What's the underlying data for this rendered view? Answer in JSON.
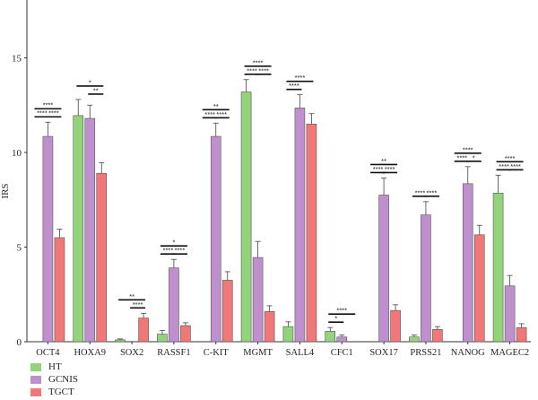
{
  "chart_data": {
    "type": "bar",
    "ylabel": "IRS",
    "xlabel": "",
    "ylim": [
      0,
      18
    ],
    "yticks": [
      0,
      5,
      10,
      15
    ],
    "grid": false,
    "legend_position": "bottom-left",
    "categories": [
      "OCT4",
      "HOXA9",
      "SOX2",
      "RASSF1",
      "C-KIT",
      "MGMT",
      "SALL4",
      "CFC1",
      "SOX17",
      "PRSS21",
      "NANOG",
      "MAGEC2"
    ],
    "series": [
      {
        "name": "HT",
        "color": "#93d37c",
        "values": [
          0,
          11.95,
          0.1,
          0.4,
          0,
          13.2,
          0.8,
          0.55,
          0,
          0.25,
          0,
          7.85
        ],
        "errors": [
          0,
          0.85,
          0.05,
          0.2,
          0,
          0.65,
          0.25,
          0.2,
          0,
          0.1,
          0,
          0.95
        ]
      },
      {
        "name": "GCNIS",
        "color": "#c090ce",
        "values": [
          10.85,
          11.8,
          0,
          3.9,
          10.85,
          4.45,
          12.35,
          0.25,
          7.75,
          6.7,
          8.35,
          2.95
        ],
        "errors": [
          0.75,
          0.7,
          0,
          0.45,
          0.7,
          0.85,
          0.7,
          0.1,
          0.9,
          0.7,
          0.9,
          0.55
        ]
      },
      {
        "name": "TGCT",
        "color": "#f07878",
        "values": [
          5.5,
          8.9,
          1.25,
          0.85,
          3.25,
          1.6,
          11.5,
          0,
          1.65,
          0.65,
          5.65,
          0.75
        ],
        "errors": [
          0.45,
          0.55,
          0.25,
          0.15,
          0.45,
          0.3,
          0.55,
          0,
          0.3,
          0.15,
          0.5,
          0.2
        ]
      }
    ],
    "significance": [
      {
        "category": "OCT4",
        "brackets": [
          {
            "from": 1,
            "to": 2,
            "label": "****",
            "level": 0
          },
          {
            "from": 0,
            "to": 1,
            "label": "****",
            "level": 0
          },
          {
            "from": 0,
            "to": 2,
            "label": "****",
            "level": 1
          }
        ]
      },
      {
        "category": "HOXA9",
        "brackets": [
          {
            "from": 1,
            "to": 2,
            "label": "**",
            "level": 0
          },
          {
            "from": 0,
            "to": 2,
            "label": "*",
            "level": 1
          }
        ]
      },
      {
        "category": "SOX2",
        "brackets": [
          {
            "from": 1,
            "to": 2,
            "label": "****",
            "level": 0
          },
          {
            "from": 0,
            "to": 2,
            "label": "**",
            "level": 1
          }
        ]
      },
      {
        "category": "RASSF1",
        "brackets": [
          {
            "from": 0,
            "to": 1,
            "label": "****",
            "level": 0
          },
          {
            "from": 1,
            "to": 2,
            "label": "****",
            "level": 0
          },
          {
            "from": 0,
            "to": 2,
            "label": "*",
            "level": 1
          }
        ]
      },
      {
        "category": "C-KIT",
        "brackets": [
          {
            "from": 0,
            "to": 1,
            "label": "****",
            "level": 0
          },
          {
            "from": 1,
            "to": 2,
            "label": "****",
            "level": 0
          },
          {
            "from": 0,
            "to": 2,
            "label": "**",
            "level": 1
          }
        ]
      },
      {
        "category": "MGMT",
        "brackets": [
          {
            "from": 0,
            "to": 1,
            "label": "****",
            "level": 0
          },
          {
            "from": 1,
            "to": 2,
            "label": "****",
            "level": 0
          },
          {
            "from": 0,
            "to": 2,
            "label": "****",
            "level": 1
          }
        ]
      },
      {
        "category": "SALL4",
        "brackets": [
          {
            "from": 0,
            "to": 1,
            "label": "****",
            "level": 0
          },
          {
            "from": 0,
            "to": 2,
            "label": "****",
            "level": 1
          }
        ]
      },
      {
        "category": "CFC1",
        "brackets": [
          {
            "from": 0,
            "to": 1,
            "label": "*",
            "level": 0
          },
          {
            "from": 0,
            "to": 2,
            "label": "****",
            "level": 1
          }
        ]
      },
      {
        "category": "SOX17",
        "brackets": [
          {
            "from": 0,
            "to": 1,
            "label": "****",
            "level": 0
          },
          {
            "from": 1,
            "to": 2,
            "label": "****",
            "level": 0
          },
          {
            "from": 0,
            "to": 2,
            "label": "**",
            "level": 1
          }
        ]
      },
      {
        "category": "PRSS21",
        "brackets": [
          {
            "from": 0,
            "to": 1,
            "label": "****",
            "level": 0
          },
          {
            "from": 1,
            "to": 2,
            "label": "****",
            "level": 0
          }
        ]
      },
      {
        "category": "NANOG",
        "brackets": [
          {
            "from": 0,
            "to": 1,
            "label": "****",
            "level": 0
          },
          {
            "from": 1,
            "to": 2,
            "label": "*",
            "level": 0
          },
          {
            "from": 0,
            "to": 2,
            "label": "****",
            "level": 1
          }
        ]
      },
      {
        "category": "MAGEC2",
        "brackets": [
          {
            "from": 0,
            "to": 1,
            "label": "****",
            "level": 0
          },
          {
            "from": 1,
            "to": 2,
            "label": "****",
            "level": 0
          },
          {
            "from": 0,
            "to": 2,
            "label": "****",
            "level": 1
          }
        ]
      }
    ]
  }
}
